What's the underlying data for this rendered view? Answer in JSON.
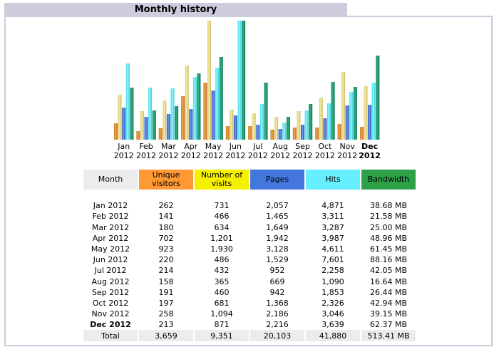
{
  "title": "Monthly history",
  "colors": {
    "unique_visitors": "#FF9933",
    "visits": "#E8D880",
    "pages": "#4477DD",
    "hits": "#66F0FF",
    "bandwidth": "#1E8C66",
    "header_month": "#ECECEC",
    "header_unique": "#FF9933",
    "header_visits": "#F5F000",
    "header_pages": "#4477DD",
    "header_hits": "#66F0FF",
    "header_bandwidth": "#2EA048",
    "title_bar": "#CCCCDD"
  },
  "chart_data": {
    "type": "bar",
    "title": "Monthly history",
    "categories": [
      "Jan 2012",
      "Feb 2012",
      "Mar 2012",
      "Apr 2012",
      "May 2012",
      "Jun 2012",
      "Jul 2012",
      "Aug 2012",
      "Sep 2012",
      "Oct 2012",
      "Nov 2012",
      "Dec 2012"
    ],
    "category_labels": [
      {
        "month": "Jan",
        "year": "2012",
        "bold": false
      },
      {
        "month": "Feb",
        "year": "2012",
        "bold": false
      },
      {
        "month": "Mar",
        "year": "2012",
        "bold": false
      },
      {
        "month": "Apr",
        "year": "2012",
        "bold": false
      },
      {
        "month": "May",
        "year": "2012",
        "bold": false
      },
      {
        "month": "Jun",
        "year": "2012",
        "bold": false
      },
      {
        "month": "Jul",
        "year": "2012",
        "bold": false
      },
      {
        "month": "Aug",
        "year": "2012",
        "bold": false
      },
      {
        "month": "Sep",
        "year": "2012",
        "bold": false
      },
      {
        "month": "Oct",
        "year": "2012",
        "bold": false
      },
      {
        "month": "Nov",
        "year": "2012",
        "bold": false
      },
      {
        "month": "Dec",
        "year": "2012",
        "bold": true
      }
    ],
    "series": [
      {
        "name": "Unique visitors",
        "key": "unique_visitors",
        "scale_group": "visits",
        "values": [
          262,
          141,
          180,
          702,
          923,
          220,
          214,
          158,
          191,
          197,
          258,
          213
        ]
      },
      {
        "name": "Number of visits",
        "key": "visits",
        "scale_group": "visits",
        "values": [
          731,
          466,
          634,
          1201,
          1930,
          486,
          432,
          365,
          460,
          681,
          1094,
          871
        ]
      },
      {
        "name": "Pages",
        "key": "pages",
        "scale_group": "hits",
        "values": [
          2057,
          1465,
          1649,
          1942,
          3128,
          1529,
          952,
          669,
          942,
          1368,
          2186,
          2216
        ]
      },
      {
        "name": "Hits",
        "key": "hits",
        "scale_group": "hits",
        "values": [
          4871,
          3311,
          3287,
          3987,
          4611,
          7601,
          2258,
          1090,
          1853,
          2326,
          3046,
          3639
        ]
      },
      {
        "name": "Bandwidth (MB)",
        "key": "bandwidth",
        "scale_group": "bandwidth",
        "values": [
          38.68,
          21.58,
          25.0,
          48.96,
          61.45,
          88.16,
          42.05,
          16.64,
          26.44,
          42.94,
          39.15,
          62.37
        ]
      }
    ],
    "scale_max": {
      "visits": 1930,
      "hits": 7601,
      "bandwidth": 88.16
    },
    "xlabel": "",
    "ylabel": "",
    "grid": false,
    "legend": "none"
  },
  "table": {
    "headers": {
      "month": "Month",
      "unique_visitors": "Unique visitors",
      "visits": "Number of visits",
      "pages": "Pages",
      "hits": "Hits",
      "bandwidth": "Bandwidth"
    },
    "rows": [
      {
        "month": "Jan 2012",
        "unique_visitors": "262",
        "visits": "731",
        "pages": "2,057",
        "hits": "4,871",
        "bandwidth": "38.68 MB",
        "bold": false
      },
      {
        "month": "Feb 2012",
        "unique_visitors": "141",
        "visits": "466",
        "pages": "1,465",
        "hits": "3,311",
        "bandwidth": "21.58 MB",
        "bold": false
      },
      {
        "month": "Mar 2012",
        "unique_visitors": "180",
        "visits": "634",
        "pages": "1,649",
        "hits": "3,287",
        "bandwidth": "25.00 MB",
        "bold": false
      },
      {
        "month": "Apr 2012",
        "unique_visitors": "702",
        "visits": "1,201",
        "pages": "1,942",
        "hits": "3,987",
        "bandwidth": "48.96 MB",
        "bold": false
      },
      {
        "month": "May 2012",
        "unique_visitors": "923",
        "visits": "1,930",
        "pages": "3,128",
        "hits": "4,611",
        "bandwidth": "61.45 MB",
        "bold": false
      },
      {
        "month": "Jun 2012",
        "unique_visitors": "220",
        "visits": "486",
        "pages": "1,529",
        "hits": "7,601",
        "bandwidth": "88.16 MB",
        "bold": false
      },
      {
        "month": "Jul 2012",
        "unique_visitors": "214",
        "visits": "432",
        "pages": "952",
        "hits": "2,258",
        "bandwidth": "42.05 MB",
        "bold": false
      },
      {
        "month": "Aug 2012",
        "unique_visitors": "158",
        "visits": "365",
        "pages": "669",
        "hits": "1,090",
        "bandwidth": "16.64 MB",
        "bold": false
      },
      {
        "month": "Sep 2012",
        "unique_visitors": "191",
        "visits": "460",
        "pages": "942",
        "hits": "1,853",
        "bandwidth": "26.44 MB",
        "bold": false
      },
      {
        "month": "Oct 2012",
        "unique_visitors": "197",
        "visits": "681",
        "pages": "1,368",
        "hits": "2,326",
        "bandwidth": "42.94 MB",
        "bold": false
      },
      {
        "month": "Nov 2012",
        "unique_visitors": "258",
        "visits": "1,094",
        "pages": "2,186",
        "hits": "3,046",
        "bandwidth": "39.15 MB",
        "bold": false
      },
      {
        "month": "Dec 2012",
        "unique_visitors": "213",
        "visits": "871",
        "pages": "2,216",
        "hits": "3,639",
        "bandwidth": "62.37 MB",
        "bold": true
      }
    ],
    "total": {
      "month": "Total",
      "unique_visitors": "3,659",
      "visits": "9,351",
      "pages": "20,103",
      "hits": "41,880",
      "bandwidth": "513.41 MB"
    }
  }
}
